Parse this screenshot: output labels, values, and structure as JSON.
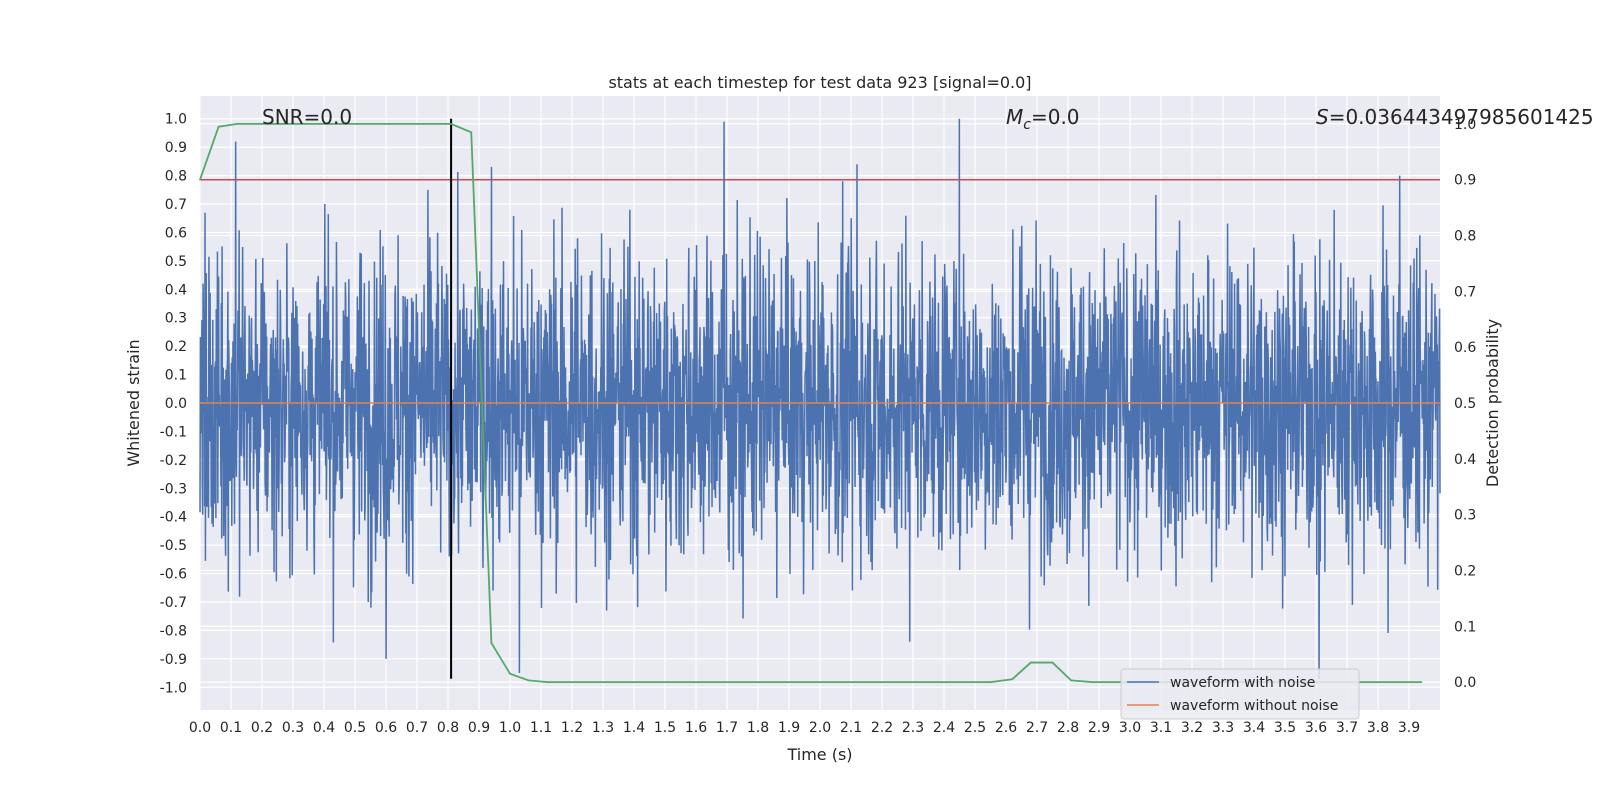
{
  "chart_data": {
    "type": "line",
    "title": "stats at each timestep for test data 923 [signal=0.0]",
    "xlabel": "Time (s)",
    "ylabel": "Whitened strain",
    "y2label": "Detection probability",
    "xlim": [
      0.0,
      4.0
    ],
    "ylim": [
      -1.08,
      1.08
    ],
    "y2lim": [
      -0.05,
      1.05
    ],
    "xticks": [
      "0.0",
      "0.1",
      "0.2",
      "0.3",
      "0.4",
      "0.5",
      "0.6",
      "0.7",
      "0.8",
      "0.9",
      "1.0",
      "1.1",
      "1.2",
      "1.3",
      "1.4",
      "1.5",
      "1.6",
      "1.7",
      "1.8",
      "1.9",
      "2.0",
      "2.1",
      "2.2",
      "2.3",
      "2.4",
      "2.5",
      "2.6",
      "2.7",
      "2.8",
      "2.9",
      "3.0",
      "3.1",
      "3.2",
      "3.3",
      "3.4",
      "3.5",
      "3.6",
      "3.7",
      "3.8",
      "3.9"
    ],
    "yticks": [
      "-1.0",
      "-0.9",
      "-0.8",
      "-0.7",
      "-0.6",
      "-0.5",
      "-0.4",
      "-0.3",
      "-0.2",
      "-0.1",
      "0.0",
      "0.1",
      "0.2",
      "0.3",
      "0.4",
      "0.5",
      "0.6",
      "0.7",
      "0.8",
      "0.9",
      "1.0"
    ],
    "y2ticks": [
      "0.0",
      "0.1",
      "0.2",
      "0.3",
      "0.4",
      "0.5",
      "0.6",
      "0.7",
      "0.8",
      "0.9",
      "1.0"
    ],
    "grid": true,
    "legend_position": "bottom-right",
    "annotations": {
      "snr": "SNR=0.0",
      "mc_symbol": "M",
      "mc_sub": "c",
      "mc_value": "=0.0",
      "s_symbol": "S",
      "s_value": "=0.036443497985601425"
    },
    "series": [
      {
        "name": "waveform with noise",
        "axis": "left",
        "color": "#4c72b0",
        "description": "dense noisy whitened strain, roughly within [-0.95, 1.0]",
        "peaks": [
          {
            "x": 0.115,
            "y": 0.92
          },
          {
            "x": 1.69,
            "y": 0.99
          },
          {
            "x": 2.45,
            "y": 1.0
          },
          {
            "x": 2.12,
            "y": 0.84
          },
          {
            "x": 0.94,
            "y": 0.83
          },
          {
            "x": 3.87,
            "y": 0.8
          },
          {
            "x": 0.6,
            "y": -0.9
          },
          {
            "x": 1.03,
            "y": -0.95
          },
          {
            "x": 3.61,
            "y": -0.97
          },
          {
            "x": 2.29,
            "y": -0.84
          }
        ]
      },
      {
        "name": "waveform without noise",
        "axis": "left",
        "color": "#dd8452",
        "x": [
          0.0,
          4.0
        ],
        "y": [
          0.0,
          0.0
        ]
      },
      {
        "name": "",
        "axis": "right",
        "color": "#55a868",
        "x": [
          0.0,
          0.06,
          0.12,
          0.81,
          0.875,
          0.94,
          1.0,
          1.06,
          1.12,
          2.55,
          2.62,
          2.68,
          2.75,
          2.81,
          2.88,
          3.94
        ],
        "y": [
          0.9,
          0.995,
          1.0,
          1.0,
          0.985,
          0.07,
          0.015,
          0.003,
          0.0,
          0.0,
          0.005,
          0.035,
          0.035,
          0.003,
          0.0,
          0.0
        ]
      }
    ],
    "hlines": [
      {
        "axis": "right",
        "y": 0.9,
        "color": "#c44e52"
      }
    ],
    "vlines": [
      {
        "x": 0.81,
        "y_range": [
          -0.97,
          1.0
        ],
        "color": "#000000"
      }
    ]
  }
}
